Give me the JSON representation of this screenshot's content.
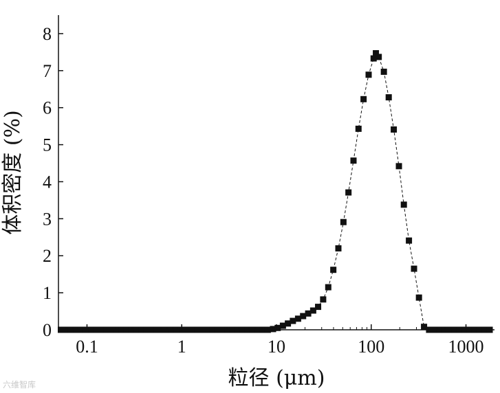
{
  "chart_data": {
    "type": "scatter",
    "xlabel": "粒径 (μm)",
    "ylabel": "体积密度 (%)",
    "x_scale": "log",
    "xlim": [
      0.05,
      2000
    ],
    "ylim": [
      0,
      8.5
    ],
    "x_ticks": [
      {
        "value": 0.1,
        "label": "0.1"
      },
      {
        "value": 1,
        "label": "1"
      },
      {
        "value": 10,
        "label": "10"
      },
      {
        "value": 100,
        "label": "100"
      },
      {
        "value": 1000,
        "label": "1000"
      }
    ],
    "y_ticks": [
      {
        "value": 0,
        "label": "0"
      },
      {
        "value": 1,
        "label": "1"
      },
      {
        "value": 2,
        "label": "2"
      },
      {
        "value": 3,
        "label": "3"
      },
      {
        "value": 4,
        "label": "4"
      },
      {
        "value": 5,
        "label": "5"
      },
      {
        "value": 6,
        "label": "6"
      },
      {
        "value": 7,
        "label": "7"
      },
      {
        "value": 8,
        "label": "8"
      }
    ],
    "grid": false,
    "marker": "square",
    "line": "dashed",
    "color": "#111111",
    "series": [
      {
        "points": [
          [
            0.053,
            0
          ],
          [
            0.06,
            0
          ],
          [
            0.068,
            0
          ],
          [
            0.077,
            0
          ],
          [
            0.087,
            0
          ],
          [
            0.098,
            0
          ],
          [
            0.111,
            0
          ],
          [
            0.125,
            0
          ],
          [
            0.142,
            0
          ],
          [
            0.16,
            0
          ],
          [
            0.181,
            0
          ],
          [
            0.205,
            0
          ],
          [
            0.232,
            0
          ],
          [
            0.262,
            0
          ],
          [
            0.296,
            0
          ],
          [
            0.335,
            0
          ],
          [
            0.378,
            0
          ],
          [
            0.428,
            0
          ],
          [
            0.484,
            0
          ],
          [
            0.547,
            0
          ],
          [
            0.618,
            0
          ],
          [
            0.699,
            0
          ],
          [
            0.79,
            0
          ],
          [
            0.893,
            0
          ],
          [
            1.01,
            0
          ],
          [
            1.14,
            0
          ],
          [
            1.29,
            0
          ],
          [
            1.46,
            0
          ],
          [
            1.65,
            0
          ],
          [
            1.86,
            0
          ],
          [
            2.1,
            0
          ],
          [
            2.38,
            0
          ],
          [
            2.69,
            0
          ],
          [
            3.04,
            0
          ],
          [
            3.43,
            0
          ],
          [
            3.88,
            0
          ],
          [
            4.39,
            0
          ],
          [
            4.96,
            0
          ],
          [
            5.61,
            0
          ],
          [
            6.34,
            0
          ],
          [
            7.17,
            0
          ],
          [
            8.1,
            0
          ],
          [
            9.2,
            0.02
          ],
          [
            10.3,
            0.05
          ],
          [
            11.7,
            0.11
          ],
          [
            13.2,
            0.17
          ],
          [
            14.9,
            0.24
          ],
          [
            16.9,
            0.3
          ],
          [
            19.1,
            0.37
          ],
          [
            21.6,
            0.44
          ],
          [
            24.4,
            0.52
          ],
          [
            27.5,
            0.62
          ],
          [
            31.1,
            0.82
          ],
          [
            35.2,
            1.15
          ],
          [
            39.8,
            1.62
          ],
          [
            45.0,
            2.2
          ],
          [
            50.9,
            2.91
          ],
          [
            57.5,
            3.71
          ],
          [
            65.0,
            4.57
          ],
          [
            73.4,
            5.43
          ],
          [
            83.0,
            6.23
          ],
          [
            93.9,
            6.89
          ],
          [
            106.0,
            7.33
          ],
          [
            112.0,
            7.47
          ],
          [
            120.0,
            7.37
          ],
          [
            136.0,
            6.97
          ],
          [
            153.0,
            6.28
          ],
          [
            173.0,
            5.41
          ],
          [
            196.0,
            4.42
          ],
          [
            221.0,
            3.38
          ],
          [
            250.0,
            2.41
          ],
          [
            283.0,
            1.65
          ],
          [
            319.0,
            0.87
          ],
          [
            361.0,
            0.08
          ],
          [
            408.0,
            0
          ],
          [
            461.0,
            0
          ],
          [
            522.0,
            0
          ],
          [
            590.0,
            0
          ],
          [
            667.0,
            0
          ],
          [
            754.0,
            0
          ],
          [
            852.0,
            0
          ],
          [
            963.0,
            0
          ],
          [
            1090.0,
            0
          ],
          [
            1230.0,
            0
          ],
          [
            1390.0,
            0
          ],
          [
            1570.0,
            0
          ],
          [
            1780.0,
            0
          ]
        ]
      }
    ]
  },
  "watermark": "六维智库"
}
